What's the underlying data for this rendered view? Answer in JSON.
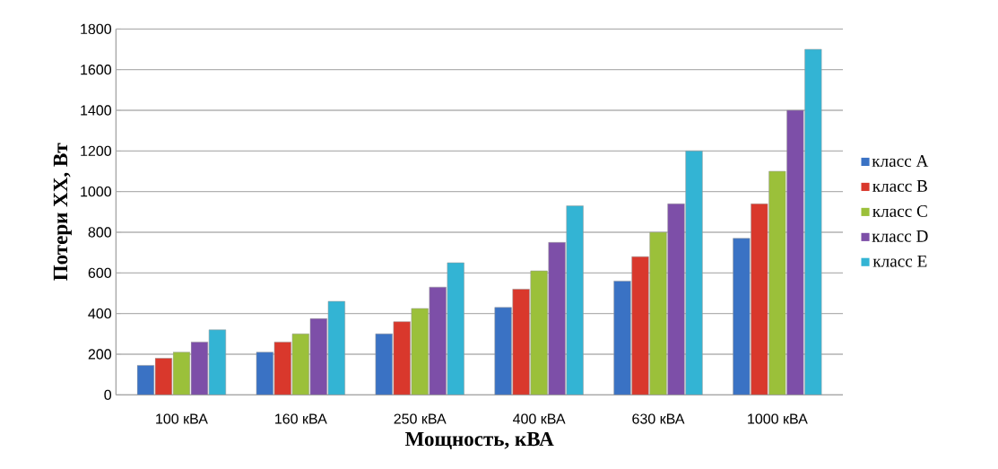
{
  "chart_data": {
    "type": "bar",
    "xlabel": "Мощность, кВА",
    "ylabel": "Потери ХХ, Вт",
    "categories": [
      "100 кВА",
      "160 кВА",
      "250 кВА",
      "400 кВА",
      "630 кВА",
      "1000 кВА"
    ],
    "series": [
      {
        "name": "класс A",
        "color": "#3a72c4",
        "values": [
          145,
          210,
          300,
          430,
          560,
          770
        ]
      },
      {
        "name": "класс B",
        "color": "#d9382c",
        "values": [
          180,
          260,
          360,
          520,
          680,
          940
        ]
      },
      {
        "name": "класс C",
        "color": "#9bc03a",
        "values": [
          210,
          300,
          425,
          610,
          800,
          1100
        ]
      },
      {
        "name": "класс D",
        "color": "#7d4fa8",
        "values": [
          260,
          375,
          530,
          750,
          940,
          1400
        ]
      },
      {
        "name": "класс E",
        "color": "#33b4d4",
        "values": [
          320,
          460,
          650,
          930,
          1200,
          1700
        ]
      }
    ],
    "ylim": [
      0,
      1800
    ],
    "yticks": [
      0,
      200,
      400,
      600,
      800,
      1000,
      1200,
      1400,
      1600,
      1800
    ],
    "grid": "y",
    "legend": "right"
  }
}
